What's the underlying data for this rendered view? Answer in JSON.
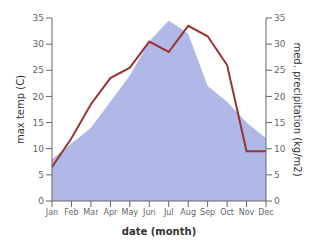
{
  "chart_data": {
    "type": "line",
    "xlabel": "date (month)",
    "ylabel": "max temp (C)",
    "y2label": "med. precipitation (kg/m2)",
    "categories": [
      "Jan",
      "Feb",
      "Mar",
      "Apr",
      "May",
      "Jun",
      "Jul",
      "Aug",
      "Sep",
      "Oct",
      "Nov",
      "Dec"
    ],
    "series": [
      {
        "type": "area",
        "axis": "y2",
        "color": "#b0b8e8",
        "values": [
          8.0,
          11.0,
          14.0,
          19.0,
          24.0,
          30.5,
          34.5,
          32.0,
          22.0,
          19.0,
          15.0,
          12.0
        ]
      },
      {
        "type": "line",
        "color": "#993333",
        "values": [
          6.5,
          12.0,
          18.5,
          23.5,
          25.5,
          30.5,
          28.5,
          33.5,
          31.5,
          26.0,
          9.5,
          9.5
        ]
      }
    ],
    "ylim": [
      0,
      35
    ],
    "yticks": [
      0,
      5,
      10,
      15,
      20,
      25,
      30,
      35
    ],
    "y2lim": [
      0,
      35
    ],
    "y2ticks": [
      0,
      5,
      10,
      15,
      20,
      25,
      30,
      35
    ],
    "grid": false
  }
}
